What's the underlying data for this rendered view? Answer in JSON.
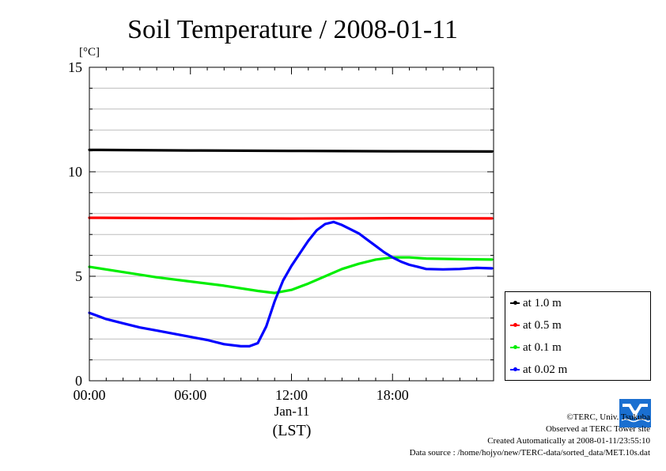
{
  "chart_data": {
    "type": "line",
    "title": "Soil Temperature / 2008-01-11",
    "ylabel": "[°C]",
    "xlabel": "(LST)",
    "x_date_label": "Jan-11",
    "ylim": [
      0,
      15
    ],
    "xlim_hours": [
      0,
      24
    ],
    "y_ticks": [
      "0",
      "5",
      "10",
      "15"
    ],
    "x_ticks": [
      {
        "hour": 0,
        "label": "00:00"
      },
      {
        "hour": 6,
        "label": "06:00"
      },
      {
        "hour": 12,
        "label": "12:00"
      },
      {
        "hour": 18,
        "label": "18:00"
      }
    ],
    "grid": true,
    "legend_position": "right-bottom, outside plot",
    "series": [
      {
        "name": "at 1.0 m",
        "color": "#000000",
        "x": [
          0,
          6,
          12,
          18,
          23.9
        ],
        "values": [
          11.05,
          11.02,
          11.0,
          10.98,
          10.97
        ]
      },
      {
        "name": "at 0.5 m",
        "color": "#ff0000",
        "x": [
          0,
          6,
          12,
          18,
          23.9
        ],
        "values": [
          7.8,
          7.78,
          7.76,
          7.78,
          7.77
        ]
      },
      {
        "name": "at 0.1 m",
        "color": "#00ee00",
        "x": [
          0,
          2,
          4,
          6,
          8,
          10,
          11,
          12,
          13,
          14,
          15,
          16,
          17,
          18,
          19,
          20,
          22,
          23.9
        ],
        "values": [
          5.45,
          5.2,
          4.95,
          4.75,
          4.55,
          4.3,
          4.2,
          4.35,
          4.65,
          5.0,
          5.35,
          5.6,
          5.8,
          5.9,
          5.9,
          5.85,
          5.82,
          5.8
        ]
      },
      {
        "name": "at 0.02 m",
        "color": "#0000ff",
        "x": [
          0,
          1,
          2,
          3,
          4,
          5,
          6,
          7,
          8,
          9,
          9.5,
          10,
          10.5,
          11,
          11.5,
          12,
          12.5,
          13,
          13.5,
          14,
          14.5,
          15,
          15.5,
          16,
          16.5,
          17,
          17.5,
          18,
          18.5,
          19,
          19.5,
          20,
          21,
          22,
          23,
          23.9
        ],
        "values": [
          3.25,
          2.95,
          2.75,
          2.55,
          2.4,
          2.25,
          2.1,
          1.95,
          1.75,
          1.65,
          1.65,
          1.8,
          2.6,
          3.8,
          4.8,
          5.5,
          6.1,
          6.7,
          7.2,
          7.5,
          7.6,
          7.45,
          7.25,
          7.05,
          6.75,
          6.45,
          6.15,
          5.9,
          5.7,
          5.55,
          5.45,
          5.35,
          5.33,
          5.35,
          5.4,
          5.38
        ]
      }
    ]
  },
  "credits": {
    "copyright": "©TERC, Univ. Tsukuba",
    "site": "Observed at TERC Tower site",
    "created": "Created Automatically at 2008-01-11/23:55:10",
    "source": "Data source : /home/hojyo/new/TERC-data/sorted_data/MET.10s.dat",
    "logo_text": "TERC"
  },
  "colors": {
    "logo_blue": "#1a6fd0"
  }
}
